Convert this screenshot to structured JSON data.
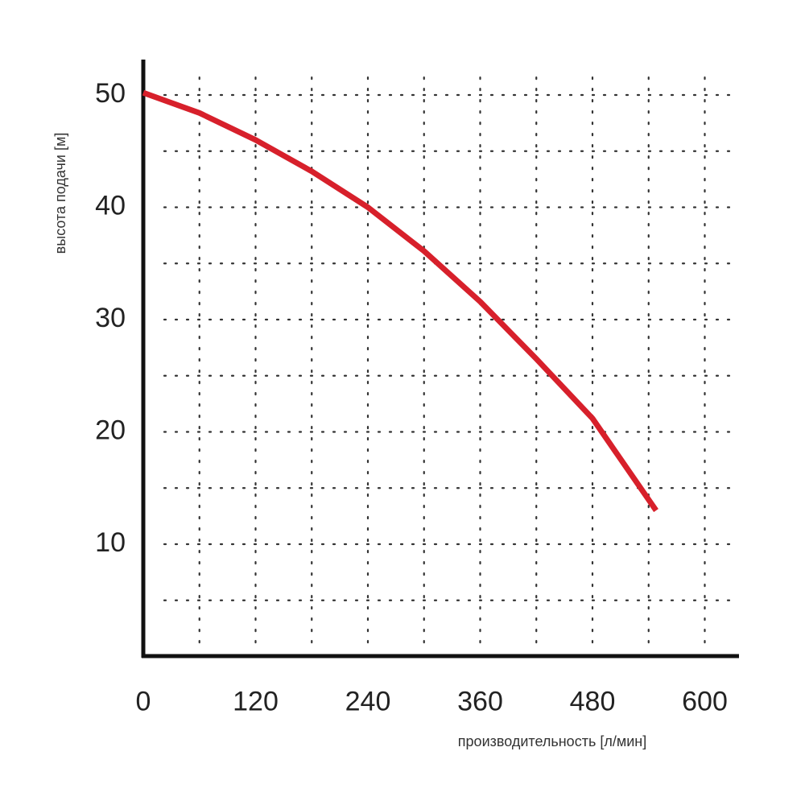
{
  "chart_data": {
    "type": "line",
    "x_label": "производительность [л/мин]",
    "y_label": "высота подачи [м]",
    "x": [
      0,
      60,
      120,
      180,
      240,
      300,
      360,
      420,
      480,
      548
    ],
    "series": [
      {
        "color": "#d7202b",
        "values": [
          50.2,
          48.4,
          46,
          43.2,
          40,
          36.1,
          31.6,
          26.5,
          21.2,
          13
        ]
      }
    ],
    "xlim": [
      0,
      636
    ],
    "ylim": [
      0,
      53
    ],
    "xticks": [
      0,
      120,
      240,
      360,
      480,
      600
    ],
    "yticks": [
      10,
      20,
      30,
      40,
      50
    ],
    "xgrid": [
      60,
      120,
      180,
      240,
      300,
      360,
      420,
      480,
      540,
      600
    ],
    "ygrid": [
      5,
      10,
      15,
      20,
      25,
      30,
      35,
      40,
      45,
      50
    ],
    "grid": true
  }
}
